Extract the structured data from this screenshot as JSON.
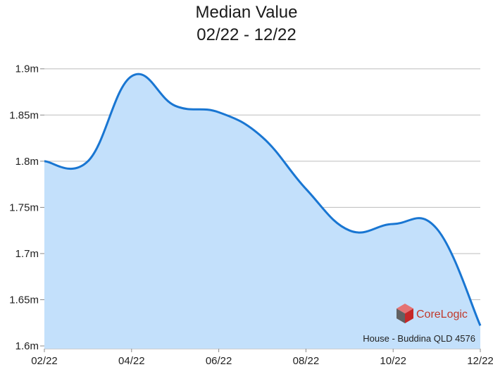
{
  "title_line1": "Median Value",
  "title_line2": "02/22 - 12/22",
  "chart_data": {
    "type": "area",
    "title": "Median Value 02/22 - 12/22",
    "xlabel": "",
    "ylabel": "",
    "x_ticks": [
      "02/22",
      "04/22",
      "06/22",
      "08/22",
      "10/22",
      "12/22"
    ],
    "y_ticks": [
      {
        "value": 1.9,
        "label": "1.9m"
      },
      {
        "value": 1.85,
        "label": "1.85m"
      },
      {
        "value": 1.8,
        "label": "1.8m"
      },
      {
        "value": 1.75,
        "label": "1.75m"
      },
      {
        "value": 1.7,
        "label": "1.7m"
      },
      {
        "value": 1.65,
        "label": "1.65m"
      },
      {
        "value": 1.6,
        "label": "1.6m"
      }
    ],
    "ylim": [
      1.597,
      1.912
    ],
    "x": [
      "2022-02",
      "2022-03",
      "2022-04",
      "2022-05",
      "2022-06",
      "2022-07",
      "2022-08",
      "2022-09",
      "2022-10",
      "2022-11",
      "2022-12"
    ],
    "values": [
      1.8,
      1.8,
      1.892,
      1.86,
      1.853,
      1.826,
      1.77,
      1.725,
      1.732,
      1.727,
      1.622
    ],
    "grid": true,
    "line_color": "#1976d2",
    "fill_color": "#c3e0fb",
    "annotation": "House - Buddina QLD 4576",
    "brand": "CoreLogic"
  }
}
